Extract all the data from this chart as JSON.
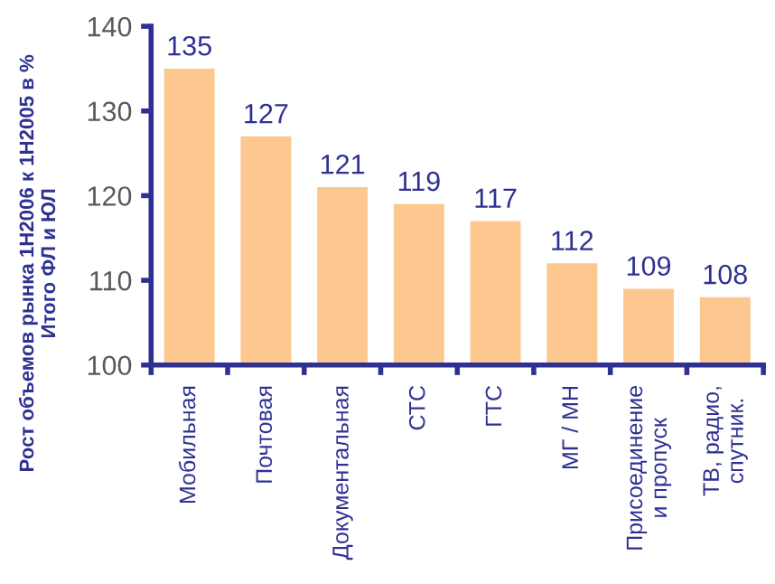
{
  "chart_data": {
    "type": "bar",
    "ylabel": "Рост объемов рынка 1H2006 к 1H2005 в %\nИтого ФЛ и ЮЛ",
    "categories": [
      "Мобильная",
      "Почтовая",
      "Документальная",
      "СТС",
      "ГТС",
      "МГ / МН",
      "Присоединение\nи пропуск",
      "ТВ, радио,\nспутник."
    ],
    "values": [
      135,
      127,
      121,
      119,
      117,
      112,
      109,
      108
    ],
    "color": "#fcc88f",
    "ylim": [
      100,
      140
    ],
    "yticks": [
      100,
      110,
      120,
      130,
      140
    ],
    "data_labels": true,
    "grid": false,
    "legend": false
  }
}
